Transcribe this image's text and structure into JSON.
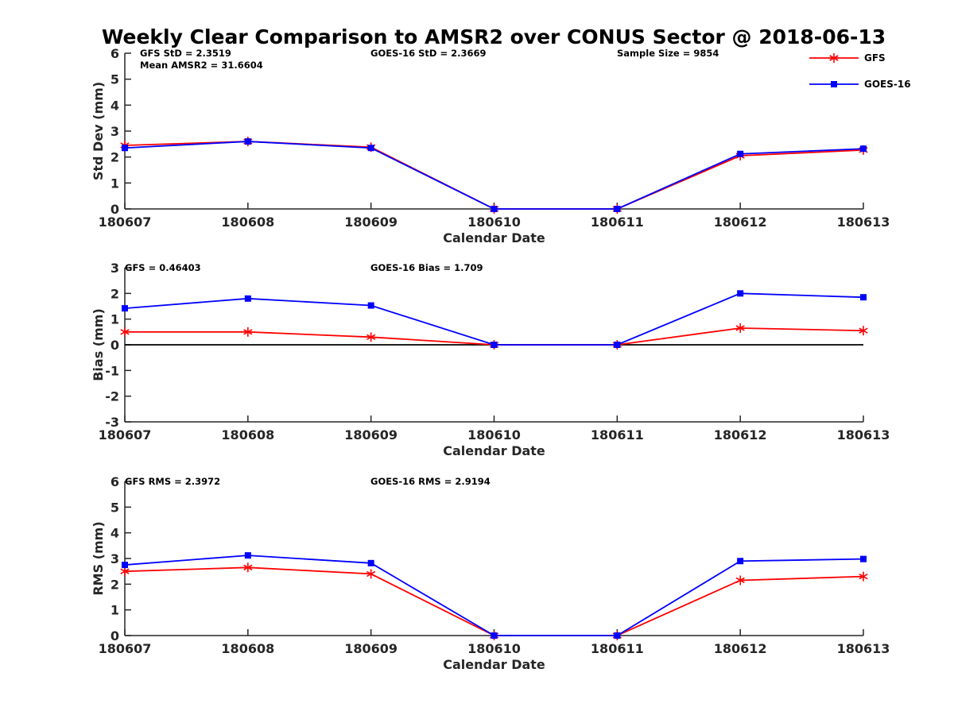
{
  "figure": {
    "title": "Weekly Clear Comparison to AMSR2 over CONUS Sector @ 2018-06-13"
  },
  "legend": {
    "placement": "top-right",
    "entries": [
      {
        "name": "GFS",
        "color": "#ff0000",
        "marker": "asterisk"
      },
      {
        "name": "GOES-16",
        "color": "#0000ff",
        "marker": "square"
      }
    ]
  },
  "chart_data": [
    {
      "type": "line",
      "id": "std",
      "xlabel": "Calendar Date",
      "ylabel": "Std Dev (mm)",
      "categories": [
        "180607",
        "180608",
        "180609",
        "180610",
        "180611",
        "180612",
        "180613"
      ],
      "ylim": [
        0,
        6
      ],
      "yticks": [
        "0",
        "1",
        "2",
        "3",
        "4",
        "5",
        "6"
      ],
      "zero_line": false,
      "annotations": [
        "GFS StD = 2.3519",
        "Mean AMSR2 = 31.6604",
        "GOES-16 StD = 2.3669",
        "Sample Size = 9854"
      ],
      "series": [
        {
          "name": "GFS",
          "color": "#ff0000",
          "marker": "asterisk",
          "values": [
            2.45,
            2.6,
            2.38,
            0,
            0,
            2.05,
            2.27
          ]
        },
        {
          "name": "GOES-16",
          "color": "#0000ff",
          "marker": "square",
          "values": [
            2.35,
            2.6,
            2.35,
            0,
            0,
            2.12,
            2.32
          ]
        }
      ]
    },
    {
      "type": "line",
      "id": "bias",
      "xlabel": "Calendar Date",
      "ylabel": "Bias (mm)",
      "categories": [
        "180607",
        "180608",
        "180609",
        "180610",
        "180611",
        "180612",
        "180613"
      ],
      "ylim": [
        -3,
        3
      ],
      "yticks": [
        "-3",
        "-2",
        "-1",
        "0",
        "1",
        "2",
        "3"
      ],
      "zero_line": true,
      "annotations": [
        "GFS = 0.46403",
        "GOES-16 Bias  = 1.709"
      ],
      "series": [
        {
          "name": "GFS",
          "color": "#ff0000",
          "marker": "asterisk",
          "values": [
            0.5,
            0.5,
            0.3,
            0,
            0,
            0.65,
            0.55
          ]
        },
        {
          "name": "GOES-16",
          "color": "#0000ff",
          "marker": "square",
          "values": [
            1.42,
            1.8,
            1.53,
            0,
            0,
            2.0,
            1.85
          ]
        }
      ]
    },
    {
      "type": "line",
      "id": "rms",
      "xlabel": "Calendar Date",
      "ylabel": "RMS (mm)",
      "categories": [
        "180607",
        "180608",
        "180609",
        "180610",
        "180611",
        "180612",
        "180613"
      ],
      "ylim": [
        0,
        6
      ],
      "yticks": [
        "0",
        "1",
        "2",
        "3",
        "4",
        "5",
        "6"
      ],
      "zero_line": false,
      "annotations": [
        "GFS RMS = 2.3972",
        "GOES-16 RMS = 2.9194"
      ],
      "series": [
        {
          "name": "GFS",
          "color": "#ff0000",
          "marker": "asterisk",
          "values": [
            2.5,
            2.65,
            2.4,
            0,
            0,
            2.15,
            2.3
          ]
        },
        {
          "name": "GOES-16",
          "color": "#0000ff",
          "marker": "square",
          "values": [
            2.75,
            3.12,
            2.82,
            0,
            0,
            2.9,
            2.98
          ]
        }
      ]
    }
  ]
}
